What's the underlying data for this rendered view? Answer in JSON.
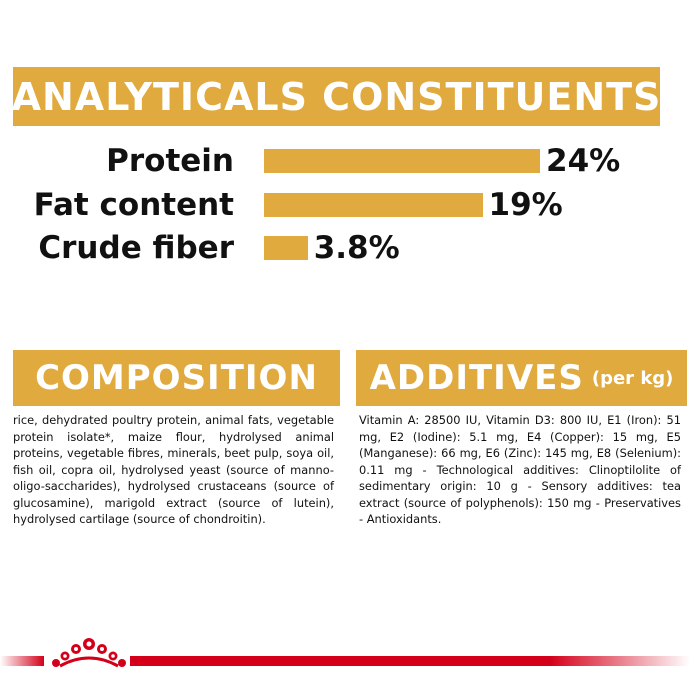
{
  "analytical": {
    "title": "ANALYTICALS CONSTITUENTS",
    "items": [
      {
        "label": "Protein",
        "value_text": "24%",
        "value": 24
      },
      {
        "label": "Fat content",
        "value_text": "19%",
        "value": 19
      },
      {
        "label": "Crude fiber",
        "value_text": "3.8%",
        "value": 3.8
      }
    ]
  },
  "composition": {
    "title": "COMPOSITION",
    "text": "rice, dehydrated poultry protein, animal fats, vegetable protein isolate*, maize flour, hydrolysed animal proteins, vegetable fibres, minerals, beet pulp, soya oil, fish oil, copra oil, hydrolysed yeast (source of manno-oligo-saccharides), hydrolysed crustaceans (source of glucosamine), marigold extract (source of lutein), hydrolysed cartilage (source of chondroitin)."
  },
  "additives": {
    "title": "ADDITIVES",
    "unit": "(per kg)",
    "text": "Vitamin A: 28500 IU, Vitamin D3: 800 IU, E1 (Iron): 51 mg, E2 (Iodine): 5.1 mg, E4 (Copper): 15 mg, E5 (Manganese): 66 mg, E6 (Zinc): 145 mg, E8 (Selenium): 0.11 mg - Technological additives: Clinoptilolite of sedimentary origin: 10 g - Sensory additives: tea extract (source of polyphenols): 150 mg - Preservatives - Antioxidants."
  },
  "colors": {
    "accent": "#e0aa3e",
    "brand_red": "#d4001a"
  },
  "footer": {
    "logo_icon": "royal-canin-crown-icon"
  }
}
